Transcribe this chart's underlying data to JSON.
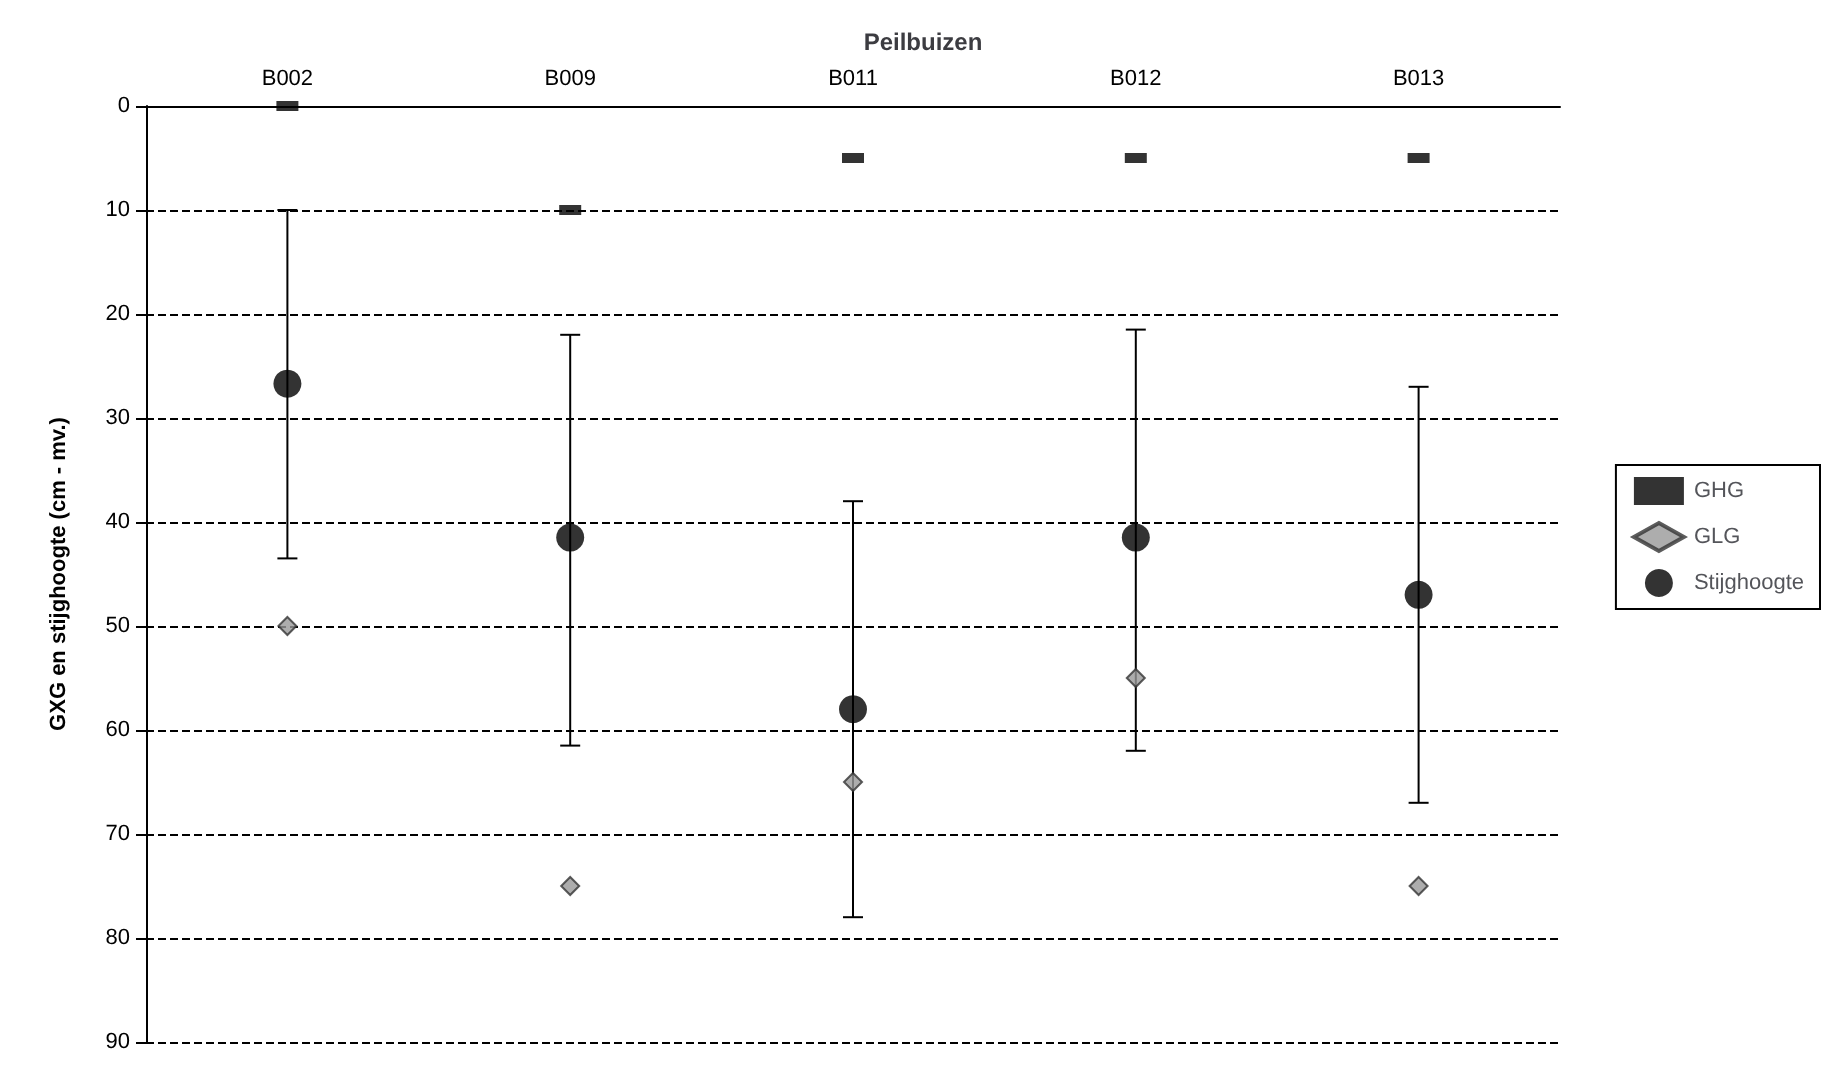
{
  "chart_data": {
    "type": "scatter",
    "title": "Peilbuizen",
    "ylabel": "GXG en stijghoogte (cm - mv.)",
    "categories": [
      "B002",
      "B009",
      "B011",
      "B012",
      "B013"
    ],
    "series": [
      {
        "name": "GHG",
        "color": "#000000",
        "marker": "square",
        "values": [
          0,
          10,
          5,
          5,
          5
        ]
      },
      {
        "name": "GLG",
        "color": "#999999",
        "marker": "diamond",
        "values": [
          50,
          75,
          65,
          55,
          75
        ]
      },
      {
        "name": "Stijghoogte",
        "color": "#000000",
        "marker": "circle",
        "values": [
          26.7,
          41.5,
          58,
          41.5,
          47
        ],
        "errors": [
          [
            10,
            43.5
          ],
          [
            22,
            61.5
          ],
          [
            38,
            78
          ],
          [
            21.5,
            62
          ],
          [
            27,
            67
          ]
        ]
      }
    ],
    "ylim": [
      90,
      0
    ],
    "yticks": [
      0,
      10,
      20,
      30,
      40,
      50,
      60,
      70,
      80,
      90
    ],
    "grid": "y",
    "line_style": "dashed",
    "legend": "right"
  }
}
